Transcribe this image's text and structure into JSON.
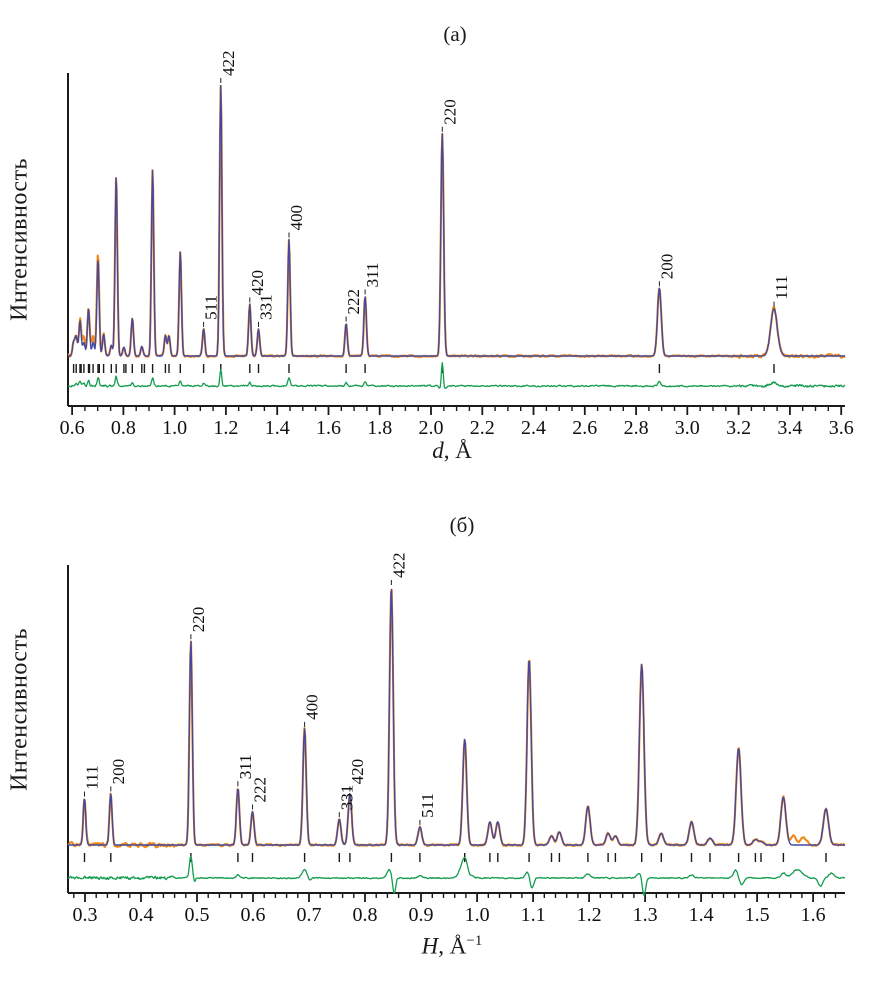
{
  "figure": {
    "panels": [
      {
        "label": "(а)",
        "ylabel": "Интенсивность",
        "xlabel_var": "d",
        "xlabel_rest": ", Å",
        "xlabel_sup": ""
      },
      {
        "label": "(б)",
        "ylabel": "Интенсивность",
        "xlabel_var": "H",
        "xlabel_rest": ", Å",
        "xlabel_sup": "−1"
      }
    ]
  },
  "chart_data": [
    {
      "type": "line",
      "panel": "а",
      "title": "(а)",
      "xlabel": "d, Å",
      "ylabel": "Интенсивность",
      "xlim": [
        0.584,
        3.615
      ],
      "grid": false,
      "x_ticks": {
        "values": [
          0.6,
          0.8,
          1.0,
          1.2,
          1.4,
          1.6,
          1.8,
          2.0,
          2.2,
          2.4,
          2.6,
          2.8,
          3.0,
          3.2,
          3.4,
          3.6
        ],
        "labels": [
          "0.6",
          "0.8",
          "1.0",
          "1.2",
          "1.4",
          "1.6",
          "1.8",
          "2.0",
          "2.2",
          "2.4",
          "2.6",
          "2.8",
          "3.0",
          "3.2",
          "3.4",
          "3.6"
        ]
      },
      "x_minor": {
        "start": 0.6,
        "end": 3.6,
        "step": 0.05
      },
      "series": [
        "observed",
        "calculated",
        "difference",
        "bragg_positions"
      ],
      "colors": {
        "observed": "#EF8A16",
        "calculated": "#4349A2",
        "difference": "#149C4F",
        "axis": "#1A1A1A"
      },
      "peak_width": {
        "base": 0.0045,
        "slope": 0.0002
      },
      "peaks": [
        {
          "x": 0.606,
          "h": 0.05
        },
        {
          "x": 0.616,
          "h": 0.07
        },
        {
          "x": 0.631,
          "h": 0.13
        },
        {
          "x": 0.646,
          "h": 0.05
        },
        {
          "x": 0.664,
          "h": 0.175
        },
        {
          "x": 0.682,
          "h": 0.05
        },
        {
          "x": 0.701,
          "h": 0.36
        },
        {
          "x": 0.723,
          "h": 0.08
        },
        {
          "x": 0.753,
          "h": 0.04
        },
        {
          "x": 0.772,
          "h": 0.67
        },
        {
          "x": 0.802,
          "h": 0.033
        },
        {
          "x": 0.835,
          "h": 0.14
        },
        {
          "x": 0.872,
          "h": 0.036
        },
        {
          "x": 0.914,
          "h": 0.69
        },
        {
          "x": 0.964,
          "h": 0.075
        },
        {
          "x": 0.978,
          "h": 0.075
        },
        {
          "x": 1.022,
          "h": 0.385
        },
        {
          "x": 1.113,
          "h": 0.1,
          "hkl": "511"
        },
        {
          "x": 1.18,
          "h": 1.0,
          "hkl": "422"
        },
        {
          "x": 1.293,
          "h": 0.19,
          "hkl": "420"
        },
        {
          "x": 1.327,
          "h": 0.1,
          "hkl": "331"
        },
        {
          "x": 1.446,
          "h": 0.43,
          "hkl": "400"
        },
        {
          "x": 1.669,
          "h": 0.12,
          "hkl": "222"
        },
        {
          "x": 1.743,
          "h": 0.22,
          "hkl": "311",
          "w": 0.005
        },
        {
          "x": 2.044,
          "h": 0.82,
          "hkl": "220",
          "w": 0.0055
        },
        {
          "x": 2.891,
          "h": 0.25,
          "hkl": "200",
          "w": 0.0075
        },
        {
          "x": 3.338,
          "h": 0.175,
          "hkl": "111",
          "w": 0.013
        }
      ],
      "obs_only_bumps": [
        {
          "x": 0.641,
          "h": 0.025,
          "w": 0.006
        },
        {
          "x": 0.676,
          "h": 0.03,
          "w": 0.006
        },
        {
          "x": 0.697,
          "h": 0.02,
          "w": 0.008
        }
      ],
      "bragg_extra": [
        0.635,
        0.668,
        0.706,
        0.81,
        0.882
      ],
      "diff_residuals": [
        {
          "x": 0.616,
          "a": 3,
          "w": 0.004
        },
        {
          "x": 0.631,
          "a": 4,
          "w": 0.004
        },
        {
          "x": 0.646,
          "a": 3,
          "w": 0.004
        },
        {
          "x": 0.664,
          "a": 5,
          "w": 0.004
        },
        {
          "x": 0.701,
          "a": 8,
          "w": 0.004
        },
        {
          "x": 0.772,
          "a": 9,
          "w": 0.004
        },
        {
          "x": 0.835,
          "a": 3,
          "w": 0.004
        },
        {
          "x": 0.914,
          "a": 8,
          "w": 0.004
        },
        {
          "x": 1.022,
          "a": 5,
          "w": 0.004
        },
        {
          "x": 1.113,
          "a": 3,
          "w": 0.004
        },
        {
          "x": 1.18,
          "a": 16,
          "w": 0.0035
        },
        {
          "x": 1.293,
          "a": 4,
          "w": 0.004
        },
        {
          "x": 1.446,
          "a": 8,
          "w": 0.0045
        },
        {
          "x": 1.669,
          "a": 3,
          "w": 0.004
        },
        {
          "x": 1.743,
          "a": 4,
          "w": 0.004
        },
        {
          "x": 2.034,
          "a": -3,
          "w": 0.004
        },
        {
          "x": 2.044,
          "a": 24,
          "w": 0.0035
        },
        {
          "x": 2.056,
          "a": -3,
          "w": 0.004
        },
        {
          "x": 2.891,
          "a": 5,
          "w": 0.005
        },
        {
          "x": 3.338,
          "a": 4,
          "w": 0.012
        }
      ],
      "noise_zones": [
        {
          "from": 0.584,
          "to": 0.75,
          "amp": 2.2
        },
        {
          "from": 0.75,
          "to": 3.2,
          "amp": 1.4
        },
        {
          "from": 3.2,
          "to": 3.615,
          "amp": 2.6
        }
      ],
      "diff_noise_zones": [
        {
          "from": 0.584,
          "to": 0.78,
          "amp": 2.2
        },
        {
          "from": 0.78,
          "to": 3.2,
          "amp": 1.2
        },
        {
          "from": 3.2,
          "to": 3.615,
          "amp": 2.0
        }
      ]
    },
    {
      "type": "line",
      "panel": "б",
      "title": "(б)",
      "xlabel": "H, Å−1",
      "ylabel": "Интенсивность",
      "xlim": [
        0.2696,
        1.657
      ],
      "grid": false,
      "x_ticks": {
        "values": [
          0.3,
          0.4,
          0.5,
          0.6,
          0.7,
          0.8,
          0.9,
          1.0,
          1.1,
          1.2,
          1.3,
          1.4,
          1.5,
          1.6
        ],
        "labels": [
          "0.3",
          "0.4",
          "0.5",
          "0.6",
          "0.7",
          "0.8",
          "0.9",
          "1.0",
          "1.1",
          "1.2",
          "1.3",
          "1.4",
          "1.5",
          "1.6"
        ]
      },
      "x_minor": {
        "start": 0.28,
        "end": 1.64,
        "step": 0.02
      },
      "series": [
        "observed",
        "calculated",
        "difference",
        "bragg_positions"
      ],
      "colors": {
        "observed": "#EF8A16",
        "calculated": "#4349A2",
        "difference": "#149C4F",
        "axis": "#1A1A1A"
      },
      "peak_width": {
        "base": 0.0022,
        "slope": 0.0018
      },
      "peaks": [
        {
          "x": 0.299,
          "h": 0.18,
          "hkl": "111"
        },
        {
          "x": 0.346,
          "h": 0.2,
          "hkl": "200"
        },
        {
          "x": 0.489,
          "h": 0.79,
          "hkl": "220"
        },
        {
          "x": 0.573,
          "h": 0.22,
          "hkl": "311"
        },
        {
          "x": 0.599,
          "h": 0.13,
          "hkl": "222"
        },
        {
          "x": 0.692,
          "h": 0.45,
          "hkl": "400"
        },
        {
          "x": 0.754,
          "h": 0.1,
          "hkl": "331"
        },
        {
          "x": 0.773,
          "h": 0.2,
          "hkl": "420"
        },
        {
          "x": 0.847,
          "h": 1.0,
          "hkl": "422"
        },
        {
          "x": 0.898,
          "h": 0.07,
          "hkl": "511"
        },
        {
          "x": 0.978,
          "h": 0.41
        },
        {
          "x": 1.023,
          "h": 0.09
        },
        {
          "x": 1.037,
          "h": 0.09
        },
        {
          "x": 1.093,
          "h": 0.72
        },
        {
          "x": 1.133,
          "h": 0.035
        },
        {
          "x": 1.147,
          "h": 0.05
        },
        {
          "x": 1.198,
          "h": 0.15
        },
        {
          "x": 1.234,
          "h": 0.045
        },
        {
          "x": 1.247,
          "h": 0.035
        },
        {
          "x": 1.294,
          "h": 0.7
        },
        {
          "x": 1.329,
          "h": 0.045
        },
        {
          "x": 1.383,
          "h": 0.09
        },
        {
          "x": 1.416,
          "h": 0.027
        },
        {
          "x": 1.467,
          "h": 0.375
        },
        {
          "x": 1.497,
          "h": 0.02
        },
        {
          "x": 1.507,
          "h": 0.012
        },
        {
          "x": 1.547,
          "h": 0.185
        },
        {
          "x": 1.623,
          "h": 0.14
        }
      ],
      "obs_only_bumps": [
        {
          "x": 1.565,
          "h": 0.035,
          "w": 0.005
        },
        {
          "x": 1.583,
          "h": 0.03,
          "w": 0.005
        }
      ],
      "bragg_extra": [],
      "diff_residuals": [
        {
          "x": 0.489,
          "a": 22,
          "w": 0.0025
        },
        {
          "x": 0.495,
          "a": -4,
          "w": 0.002
        },
        {
          "x": 0.573,
          "a": 3,
          "w": 0.003
        },
        {
          "x": 0.692,
          "a": 8,
          "w": 0.005
        },
        {
          "x": 0.7,
          "a": -3,
          "w": 0.003
        },
        {
          "x": 0.843,
          "a": 8,
          "w": 0.004
        },
        {
          "x": 0.852,
          "a": -16,
          "w": 0.0025
        },
        {
          "x": 0.898,
          "a": 3,
          "w": 0.003
        },
        {
          "x": 0.978,
          "a": 20,
          "w": 0.007
        },
        {
          "x": 0.986,
          "a": -5,
          "w": 0.003
        },
        {
          "x": 1.09,
          "a": 6,
          "w": 0.004
        },
        {
          "x": 1.098,
          "a": -11,
          "w": 0.003
        },
        {
          "x": 1.198,
          "a": 4,
          "w": 0.004
        },
        {
          "x": 1.29,
          "a": 5,
          "w": 0.004
        },
        {
          "x": 1.298,
          "a": -18,
          "w": 0.003
        },
        {
          "x": 1.383,
          "a": 3,
          "w": 0.004
        },
        {
          "x": 1.462,
          "a": 8,
          "w": 0.004
        },
        {
          "x": 1.472,
          "a": -7,
          "w": 0.004
        },
        {
          "x": 1.547,
          "a": 5,
          "w": 0.004
        },
        {
          "x": 1.572,
          "a": 8,
          "w": 0.009
        },
        {
          "x": 1.613,
          "a": -8,
          "w": 0.004
        },
        {
          "x": 1.633,
          "a": 5,
          "w": 0.005
        }
      ],
      "noise_zones": [
        {
          "from": 0.2696,
          "to": 0.46,
          "amp": 3.2
        },
        {
          "from": 0.46,
          "to": 1.657,
          "amp": 1.5
        }
      ],
      "diff_noise_zones": [
        {
          "from": 0.2696,
          "to": 0.46,
          "amp": 2.8
        },
        {
          "from": 0.46,
          "to": 1.657,
          "amp": 1.0
        }
      ]
    }
  ]
}
